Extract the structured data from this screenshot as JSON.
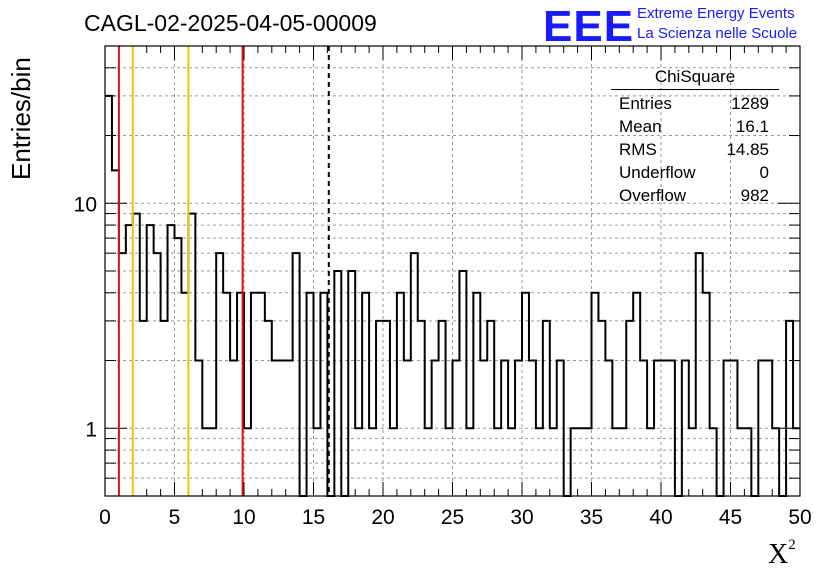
{
  "title": "CAGL-02-2025-04-05-00009",
  "logo": {
    "mark": "EEE",
    "line1": "Extreme Energy Events",
    "line2": "La Scienza nelle Scuole"
  },
  "stats": {
    "title": "ChiSquare",
    "rows": [
      {
        "label": "Entries",
        "value": "1289"
      },
      {
        "label": "Mean",
        "value": "16.1"
      },
      {
        "label": "RMS",
        "value": "14.85"
      },
      {
        "label": "Underflow",
        "value": "0"
      },
      {
        "label": "Overflow",
        "value": "982"
      }
    ]
  },
  "colors": {
    "red": "#dd1111",
    "yellow": "#f5c400",
    "logo": "#1a1aff"
  },
  "chart_data": {
    "type": "histogram",
    "title": "CAGL-02-2025-04-05-00009",
    "xlabel": "X",
    "xlabel_superscript": "2",
    "ylabel": "Entries/bin",
    "xlim": [
      0,
      50
    ],
    "ylim": [
      0.5,
      50
    ],
    "yscale": "log",
    "grid": true,
    "bin_width": 0.5,
    "x_ticks": [
      0,
      5,
      10,
      15,
      20,
      25,
      30,
      35,
      40,
      45,
      50
    ],
    "y_tick_labels": [
      "1",
      "10"
    ],
    "values": [
      30,
      14,
      6,
      8,
      9,
      3,
      8,
      6,
      3,
      8,
      7,
      4,
      9,
      2,
      1,
      1,
      6,
      4,
      2,
      4,
      1,
      4,
      4,
      3,
      2,
      2,
      2,
      6,
      0,
      4,
      1,
      4,
      0,
      5,
      0,
      5,
      1,
      4,
      1,
      3,
      3,
      1,
      4,
      2,
      6,
      3,
      1,
      2,
      3,
      1,
      2,
      5,
      1,
      4,
      2,
      3,
      1,
      2,
      1,
      2,
      4,
      2,
      1,
      3,
      1,
      2,
      0,
      1,
      1,
      1,
      4,
      3,
      2,
      1,
      1,
      3,
      4,
      2,
      1,
      2,
      2,
      2,
      0,
      2,
      1,
      6,
      4,
      1,
      0,
      2,
      2,
      1,
      1,
      0,
      2,
      2,
      1,
      0,
      3,
      1
    ],
    "vertical_lines": [
      {
        "x": 1.0,
        "color": "red",
        "style": "solid"
      },
      {
        "x": 2.0,
        "color": "yellow",
        "style": "solid"
      },
      {
        "x": 6.0,
        "color": "yellow",
        "style": "solid"
      },
      {
        "x": 9.9,
        "color": "red",
        "style": "solid"
      },
      {
        "x": 16.1,
        "color": "black",
        "style": "dashed"
      }
    ]
  }
}
